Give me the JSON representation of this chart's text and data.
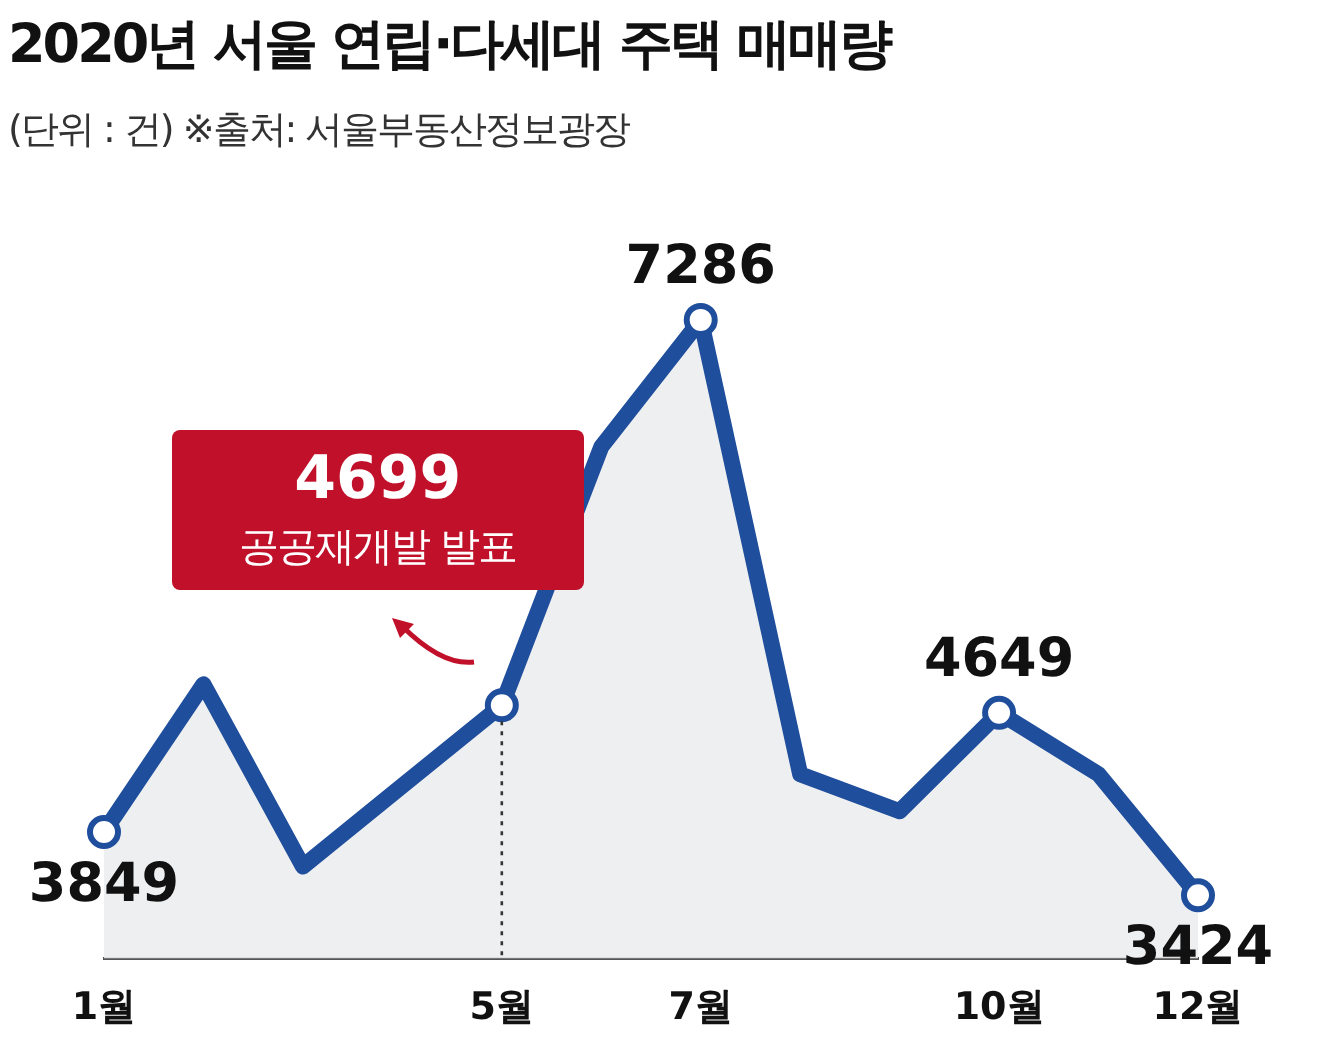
{
  "chart_data": {
    "type": "area",
    "title": "2020년 서울 연립·다세대 주택 매매량",
    "subtitle": "(단위 : 건) ※출처: 서울부동산정보광장",
    "categories": [
      "1월",
      null,
      null,
      null,
      "5월",
      null,
      "7월",
      null,
      null,
      "10월",
      null,
      "12월"
    ],
    "series": [
      {
        "color": "#1f4e9c",
        "values": [
          3849,
          4840,
          3617,
          4159,
          4699,
          6434,
          7286,
          4236,
          3988,
          4649,
          4236,
          3424
        ],
        "value_labels": [
          "3849",
          null,
          null,
          null,
          "4699",
          null,
          "7286",
          null,
          null,
          "4649",
          null,
          "3424"
        ]
      }
    ],
    "tick_labels": "x",
    "grid": false,
    "legend": false,
    "line_style": "solid",
    "annotations": [
      "공공재개발 발표"
    ],
    "ref_lines": [
      {
        "axis": "x",
        "value": "5월",
        "line_style": "dotted",
        "color": "#333333"
      }
    ]
  }
}
